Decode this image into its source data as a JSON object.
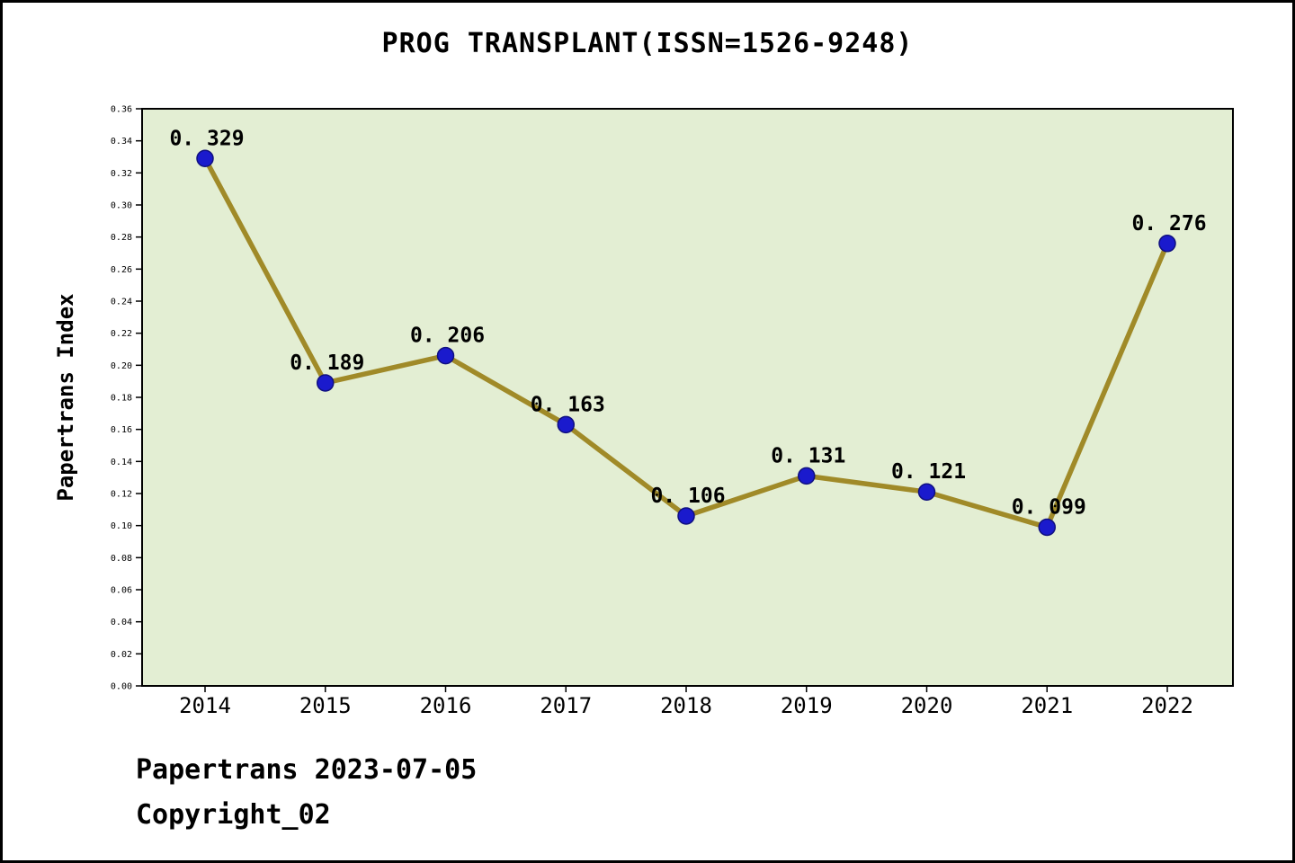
{
  "title": "PROG TRANSPLANT(ISSN=1526-9248)",
  "footer": {
    "line1": "Papertrans 2023-07-05",
    "line2": "Copyright_02"
  },
  "chart_data": {
    "type": "line",
    "title": "PROG TRANSPLANT(ISSN=1526-9248)",
    "xlabel": "",
    "ylabel": "Papertrans Index",
    "categories": [
      "2014",
      "2015",
      "2016",
      "2017",
      "2018",
      "2019",
      "2020",
      "2021",
      "2022"
    ],
    "values": [
      0.329,
      0.189,
      0.206,
      0.163,
      0.106,
      0.131,
      0.121,
      0.099,
      0.276
    ],
    "point_labels": [
      "0. 329",
      "0. 189",
      "0. 206",
      "0. 163",
      "0. 106",
      "0. 131",
      "0. 121",
      "0. 099",
      "0. 276"
    ],
    "ylim": [
      0.0,
      0.36
    ],
    "y_tick_step": 0.02,
    "y_tick_labels": [
      "0.00",
      "0.02",
      "0.04",
      "0.06",
      "0.08",
      "0.10",
      "0.12",
      "0.14",
      "0.16",
      "0.18",
      "0.20",
      "0.22",
      "0.24",
      "0.26",
      "0.28",
      "0.30",
      "0.32",
      "0.34",
      "0.36"
    ],
    "grid": false,
    "legend": "none",
    "colors": {
      "line": "#a08a28",
      "marker": "#1a1acd",
      "marker_edge": "#101080",
      "plot_bg": "#e3eed3",
      "page_bg": "#ffffff",
      "text": "#000000"
    }
  }
}
